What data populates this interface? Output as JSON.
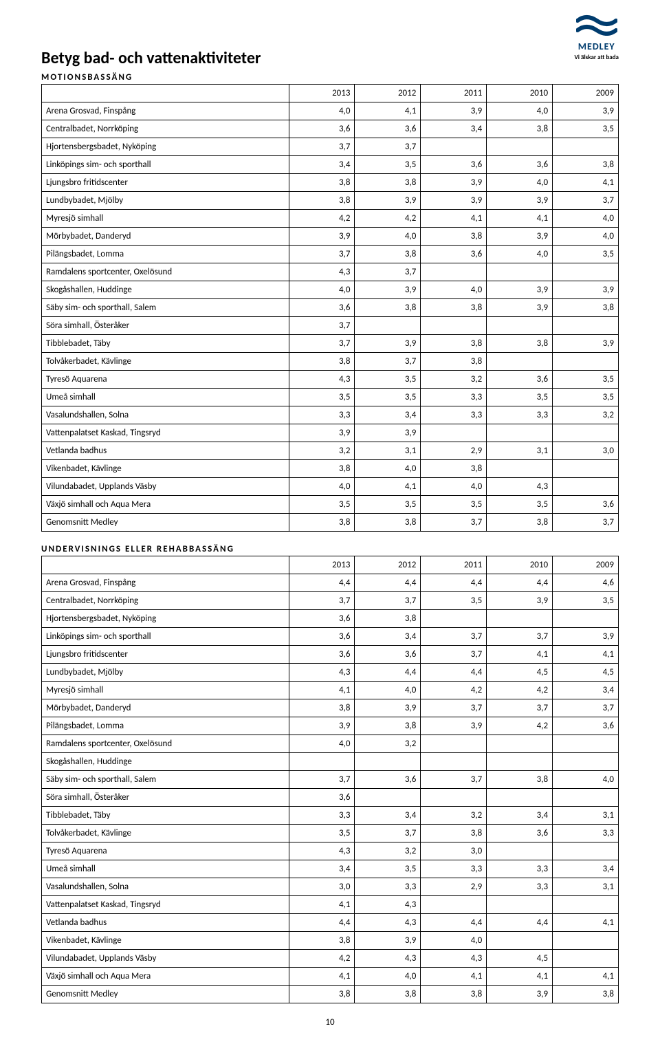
{
  "logo": {
    "brand": "MEDLEY",
    "tagline": "Vi älskar att bada"
  },
  "title": "Betyg bad- och vattenaktiviteter",
  "page_number": "10",
  "table1": {
    "section": "MOTIONSBASSÄNG",
    "headers": [
      "",
      "2013",
      "2012",
      "2011",
      "2010",
      "2009"
    ],
    "rows": [
      [
        "Arena Grosvad, Finspång",
        "4,0",
        "4,1",
        "3,9",
        "4,0",
        "3,9"
      ],
      [
        "Centralbadet, Norrköping",
        "3,6",
        "3,6",
        "3,4",
        "3,8",
        "3,5"
      ],
      [
        "Hjortensbergsbadet, Nyköping",
        "3,7",
        "3,7",
        "",
        "",
        ""
      ],
      [
        "Linköpings sim- och sporthall",
        "3,4",
        "3,5",
        "3,6",
        "3,6",
        "3,8"
      ],
      [
        "Ljungsbro fritidscenter",
        "3,8",
        "3,8",
        "3,9",
        "4,0",
        "4,1"
      ],
      [
        "Lundbybadet, Mjölby",
        "3,8",
        "3,9",
        "3,9",
        "3,9",
        "3,7"
      ],
      [
        "Myresjö simhall",
        "4,2",
        "4,2",
        "4,1",
        "4,1",
        "4,0"
      ],
      [
        "Mörbybadet, Danderyd",
        "3,9",
        "4,0",
        "3,8",
        "3,9",
        "4,0"
      ],
      [
        "Pilängsbadet, Lomma",
        "3,7",
        "3,8",
        "3,6",
        "4,0",
        "3,5"
      ],
      [
        "Ramdalens sportcenter, Oxelösund",
        "4,3",
        "3,7",
        "",
        "",
        ""
      ],
      [
        "Skogåshallen, Huddinge",
        "4,0",
        "3,9",
        "4,0",
        "3,9",
        "3,9"
      ],
      [
        "Säby sim- och sporthall, Salem",
        "3,6",
        "3,8",
        "3,8",
        "3,9",
        "3,8"
      ],
      [
        "Söra simhall, Österåker",
        "3,7",
        "",
        "",
        "",
        ""
      ],
      [
        "Tibblebadet, Täby",
        "3,7",
        "3,9",
        "3,8",
        "3,8",
        "3,9"
      ],
      [
        "Tolvåkerbadet, Kävlinge",
        "3,8",
        "3,7",
        "3,8",
        "",
        ""
      ],
      [
        "Tyresö Aquarena",
        "4,3",
        "3,5",
        "3,2",
        "3,6",
        "3,5"
      ],
      [
        "Umeå simhall",
        "3,5",
        "3,5",
        "3,3",
        "3,5",
        "3,5"
      ],
      [
        "Vasalundshallen, Solna",
        "3,3",
        "3,4",
        "3,3",
        "3,3",
        "3,2"
      ],
      [
        "Vattenpalatset Kaskad, Tingsryd",
        "3,9",
        "3,9",
        "",
        "",
        ""
      ],
      [
        "Vetlanda badhus",
        "3,2",
        "3,1",
        "2,9",
        "3,1",
        "3,0"
      ],
      [
        "Vikenbadet, Kävlinge",
        "3,8",
        "4,0",
        "3,8",
        "",
        ""
      ],
      [
        "Vilundabadet, Upplands Väsby",
        "4,0",
        "4,1",
        "4,0",
        "4,3",
        ""
      ],
      [
        "Växjö simhall och Aqua Mera",
        "3,5",
        "3,5",
        "3,5",
        "3,5",
        "3,6"
      ],
      [
        "Genomsnitt Medley",
        "3,8",
        "3,8",
        "3,7",
        "3,8",
        "3,7"
      ]
    ]
  },
  "table2": {
    "section": "UNDERVISNINGS ELLER REHABBASSÄNG",
    "headers": [
      "",
      "2013",
      "2012",
      "2011",
      "2010",
      "2009"
    ],
    "rows": [
      [
        "Arena Grosvad, Finspång",
        "4,4",
        "4,4",
        "4,4",
        "4,4",
        "4,6"
      ],
      [
        "Centralbadet, Norrköping",
        "3,7",
        "3,7",
        "3,5",
        "3,9",
        "3,5"
      ],
      [
        "Hjortensbergsbadet, Nyköping",
        "3,6",
        "3,8",
        "",
        "",
        ""
      ],
      [
        "Linköpings sim- och sporthall",
        "3,6",
        "3,4",
        "3,7",
        "3,7",
        "3,9"
      ],
      [
        "Ljungsbro fritidscenter",
        "3,6",
        "3,6",
        "3,7",
        "4,1",
        "4,1"
      ],
      [
        "Lundbybadet, Mjölby",
        "4,3",
        "4,4",
        "4,4",
        "4,5",
        "4,5"
      ],
      [
        "Myresjö simhall",
        "4,1",
        "4,0",
        "4,2",
        "4,2",
        "3,4"
      ],
      [
        "Mörbybadet, Danderyd",
        "3,8",
        "3,9",
        "3,7",
        "3,7",
        "3,7"
      ],
      [
        "Pilängsbadet, Lomma",
        "3,9",
        "3,8",
        "3,9",
        "4,2",
        "3,6"
      ],
      [
        "Ramdalens sportcenter, Oxelösund",
        "4,0",
        "3,2",
        "",
        "",
        ""
      ],
      [
        "Skogåshallen, Huddinge",
        "",
        "",
        "",
        "",
        ""
      ],
      [
        "Säby sim- och sporthall, Salem",
        "3,7",
        "3,6",
        "3,7",
        "3,8",
        "4,0"
      ],
      [
        "Söra simhall, Österåker",
        "3,6",
        "",
        "",
        "",
        ""
      ],
      [
        "Tibblebadet, Täby",
        "3,3",
        "3,4",
        "3,2",
        "3,4",
        "3,1"
      ],
      [
        "Tolvåkerbadet, Kävlinge",
        "3,5",
        "3,7",
        "3,8",
        "3,6",
        "3,3"
      ],
      [
        "Tyresö Aquarena",
        "4,3",
        "3,2",
        "3,0",
        "",
        ""
      ],
      [
        "Umeå simhall",
        "3,4",
        "3,5",
        "3,3",
        "3,3",
        "3,4"
      ],
      [
        "Vasalundshallen, Solna",
        "3,0",
        "3,3",
        "2,9",
        "3,3",
        "3,1"
      ],
      [
        "Vattenpalatset Kaskad, Tingsryd",
        "4,1",
        "4,3",
        "",
        "",
        ""
      ],
      [
        "Vetlanda badhus",
        "4,4",
        "4,3",
        "4,4",
        "4,4",
        "4,1"
      ],
      [
        "Vikenbadet, Kävlinge",
        "3,8",
        "3,9",
        "4,0",
        "",
        ""
      ],
      [
        "Vilundabadet, Upplands Väsby",
        "4,2",
        "4,3",
        "4,3",
        "4,5",
        ""
      ],
      [
        "Växjö simhall och Aqua Mera",
        "4,1",
        "4,0",
        "4,1",
        "4,1",
        "4,1"
      ],
      [
        "Genomsnitt Medley",
        "3,8",
        "3,8",
        "3,8",
        "3,9",
        "3,8"
      ]
    ]
  }
}
